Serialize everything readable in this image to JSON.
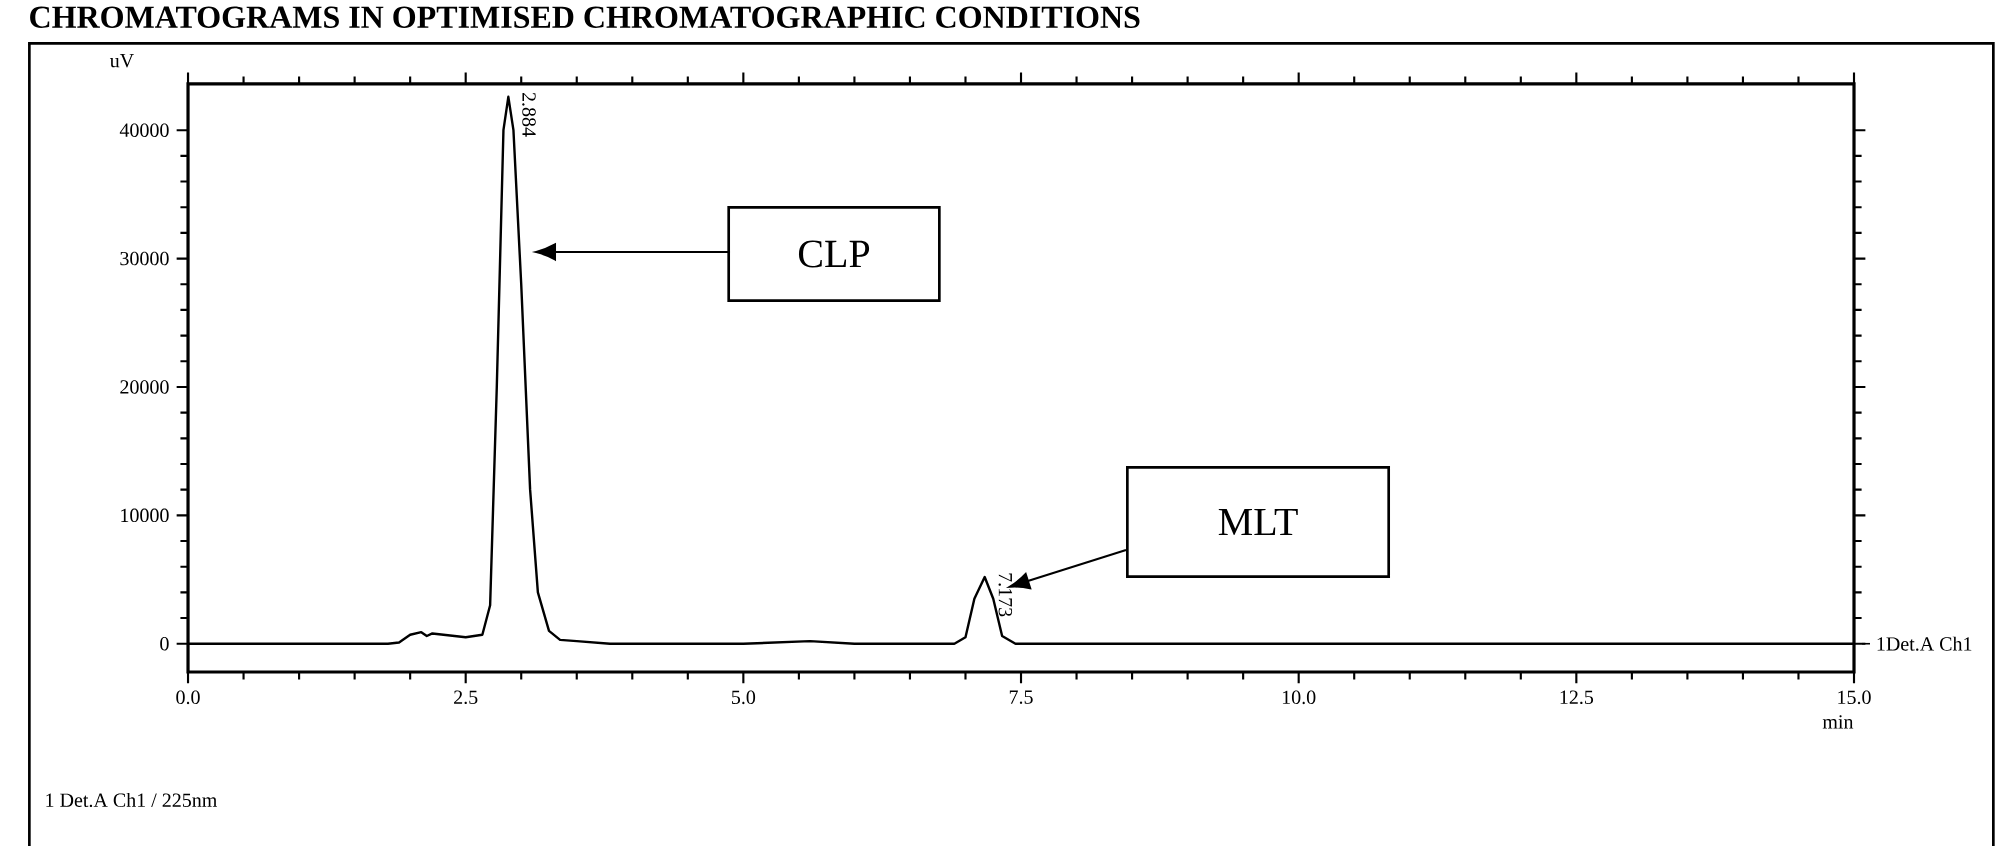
{
  "chart_data": {
    "type": "line",
    "title": "CHROMATOGRAMS IN OPTIMISED CHROMATOGRAPHIC CONDITIONS",
    "xlabel": "min",
    "ylabel": "uV",
    "x": [
      0,
      1.8,
      1.9,
      2.0,
      2.1,
      2.15,
      2.2,
      2.3,
      2.5,
      2.65,
      2.72,
      2.78,
      2.84,
      2.884,
      2.93,
      3.0,
      3.08,
      3.15,
      3.25,
      3.35,
      3.5,
      3.8,
      5.0,
      5.6,
      6.0,
      6.9,
      7.0,
      7.08,
      7.173,
      7.25,
      7.33,
      7.45,
      15
    ],
    "series": [
      {
        "name": "1Det.A Ch1",
        "color": "#000000",
        "values": [
          0,
          0,
          100,
          700,
          900,
          600,
          800,
          700,
          500,
          700,
          3000,
          20000,
          40000,
          42600,
          40000,
          28000,
          12000,
          4000,
          1000,
          300,
          200,
          0,
          0,
          200,
          0,
          0,
          500,
          3500,
          5200,
          3500,
          600,
          0,
          0
        ]
      }
    ],
    "xlim": [
      0,
      15
    ],
    "ylim": [
      -2200,
      43600
    ],
    "xticks": [
      {
        "value": 0,
        "label": "0.0"
      },
      {
        "value": 2.5,
        "label": "2.5"
      },
      {
        "value": 5,
        "label": "5.0"
      },
      {
        "value": 7.5,
        "label": "7.5"
      },
      {
        "value": 10,
        "label": "10.0"
      },
      {
        "value": 12.5,
        "label": "12.5"
      },
      {
        "value": 15,
        "label": "15.0"
      }
    ],
    "yticks": [
      0,
      10000,
      20000,
      30000,
      40000
    ],
    "marker": "none",
    "line_style": "solid",
    "grid": false,
    "legend": "right",
    "annotations": [
      {
        "text": "2.884",
        "x": 2.884,
        "y": 42600
      },
      {
        "text": "7.173",
        "x": 7.173,
        "y": 5200
      },
      "CLP",
      "MLT",
      "1 Det.A Ch1 / 225nm"
    ]
  }
}
